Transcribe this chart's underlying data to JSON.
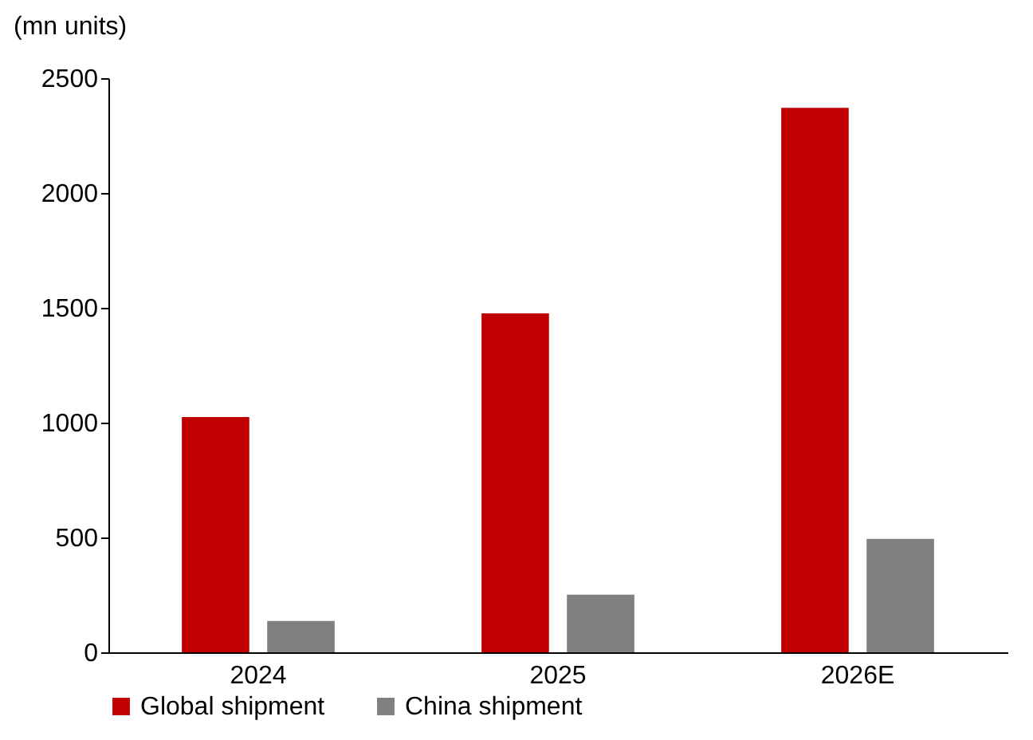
{
  "chart_data": {
    "type": "bar",
    "ylabel": "(mn units)",
    "categories": [
      "2024",
      "2025",
      "2026E"
    ],
    "series": [
      {
        "name": "Global shipment",
        "color": "#c00000",
        "values": [
          1024,
          1476,
          2371
        ]
      },
      {
        "name": "China shipment",
        "color": "#808080",
        "values": [
          136,
          251,
          494
        ]
      }
    ],
    "ylim": [
      0,
      2500
    ],
    "yticks": [
      0,
      500,
      1000,
      1500,
      2000,
      2500
    ],
    "grid": false,
    "legend": "bottom"
  }
}
